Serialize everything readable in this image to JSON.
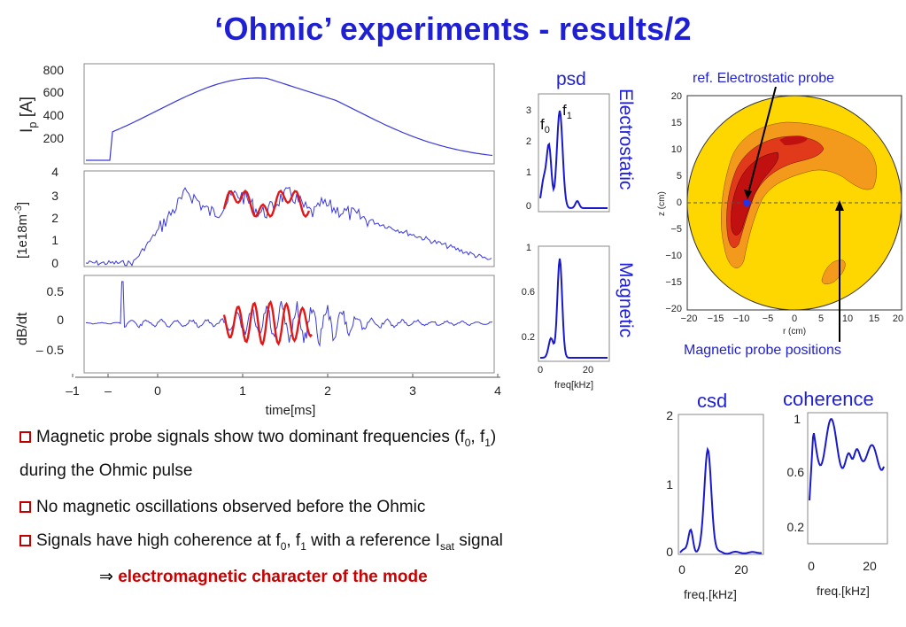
{
  "title": "‘Ohmic’ experiments - results/2",
  "left_plots": {
    "ip_ylabel": "I",
    "ip_ylabel_sub": "p",
    "ip_ylabel_unit": " [A]",
    "ip_yticks": [
      "800",
      "600",
      "400",
      "200"
    ],
    "ne_ylabel": "[1e18m",
    "ne_ylabel_sup": "-3",
    "ne_ylabel_end": "]",
    "ne_yticks": [
      "4",
      "3",
      "2",
      "1",
      "0"
    ],
    "db_ylabel": "dB/dt",
    "db_yticks": [
      "0.5",
      "0",
      "– 0.5"
    ],
    "xticks": [
      "–1",
      "–",
      "0",
      "1",
      "2",
      "3",
      "4"
    ],
    "xlabel": "time[ms]"
  },
  "psd": {
    "label": "psd",
    "f0": "f",
    "f0_sub": "0",
    "f1": "f",
    "f1_sub": "1",
    "top_yticks": [
      "3",
      "2",
      "1",
      "0"
    ],
    "bottom_yticks": [
      "1",
      "0.6",
      "0.2"
    ],
    "xticks": [
      "0",
      "20"
    ],
    "xlabel": "freq[kHz]",
    "side_label_top": "Electrostatic",
    "side_label_bottom": "Magnetic"
  },
  "map": {
    "ref_label": "ref. Electrostatic probe",
    "mag_label": "Magnetic probe positions",
    "ylabel": "z (cm)",
    "xlabel": "r (cm)",
    "yticks": [
      "20",
      "15",
      "10",
      "5",
      "0",
      "−5",
      "−10",
      "−15",
      "−20"
    ],
    "xticks": [
      "−20",
      "−15",
      "−10",
      "−5",
      "0",
      "5",
      "10",
      "15",
      "20"
    ]
  },
  "csd": {
    "label": "csd",
    "yticks": [
      "2",
      "1",
      "0"
    ],
    "xticks": [
      "0",
      "20"
    ],
    "xlabel": "freq.[kHz]"
  },
  "coherence": {
    "label": "coherence",
    "yticks": [
      "1",
      "0.6",
      "0.2"
    ],
    "xticks": [
      "0",
      "20"
    ],
    "xlabel": "freq.[kHz]"
  },
  "bullets": {
    "b1_a": "Magnetic probe signals show two dominant frequencies (f",
    "b1_s0": "0",
    "b1_b": ", f",
    "b1_s1": "1",
    "b1_c": ")",
    "b1_line2": "during the Ohmic pulse",
    "b2": "No magnetic oscillations observed before the Ohmic",
    "b3_a": "Signals have high coherence at f",
    "b3_s0": "0",
    "b3_b": ", f",
    "b3_s1": "1",
    "b3_c": " with a reference I",
    "b3_ssat": "sat",
    "b3_d": " signal",
    "conclusion_arrow": "⇒",
    "conclusion": "electromagnetic character of the mode"
  },
  "colors": {
    "title": "#1f1fd4",
    "trace": "#3a3ad8",
    "highlight": "#e01818",
    "spectrum": "#1a1acc",
    "bullet_box": "#c00000",
    "conclusion": "#cc0000",
    "map_outer": "#ffd700",
    "map_mid": "#f39a1c",
    "map_inner": "#e03a1a",
    "map_core": "#c01010"
  }
}
